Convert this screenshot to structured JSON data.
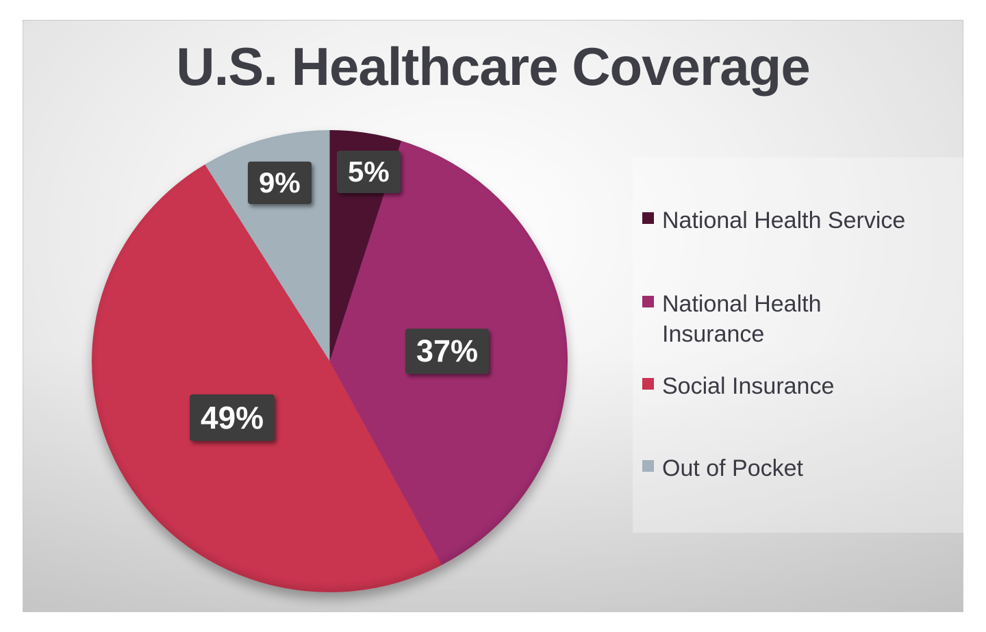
{
  "chart_data": {
    "type": "pie",
    "title": "U.S. Healthcare Coverage",
    "categories": [
      "National Health Service",
      "National Health Insurance",
      "Social Insurance",
      "Out of Pocket"
    ],
    "values": [
      5,
      37,
      49,
      9
    ],
    "labels": [
      "5%",
      "37%",
      "49%",
      "9%"
    ],
    "colors": [
      "#4e1231",
      "#9e2d6e",
      "#c9344f",
      "#a3b1bb"
    ],
    "start_angle_deg": 0,
    "direction": "clockwise",
    "legend_position": "right",
    "label_style": "white bold text on dark gray boxes",
    "background": "light gray radial gradient slide"
  },
  "title": "U.S. Healthcare Coverage",
  "legend": {
    "items": [
      {
        "label": "National Health Service",
        "color": "#4e1231"
      },
      {
        "label": "National Health Insurance",
        "color": "#9e2d6e"
      },
      {
        "label": "Social Insurance",
        "color": "#c9344f"
      },
      {
        "label": "Out of Pocket",
        "color": "#a3b1bb"
      }
    ]
  }
}
